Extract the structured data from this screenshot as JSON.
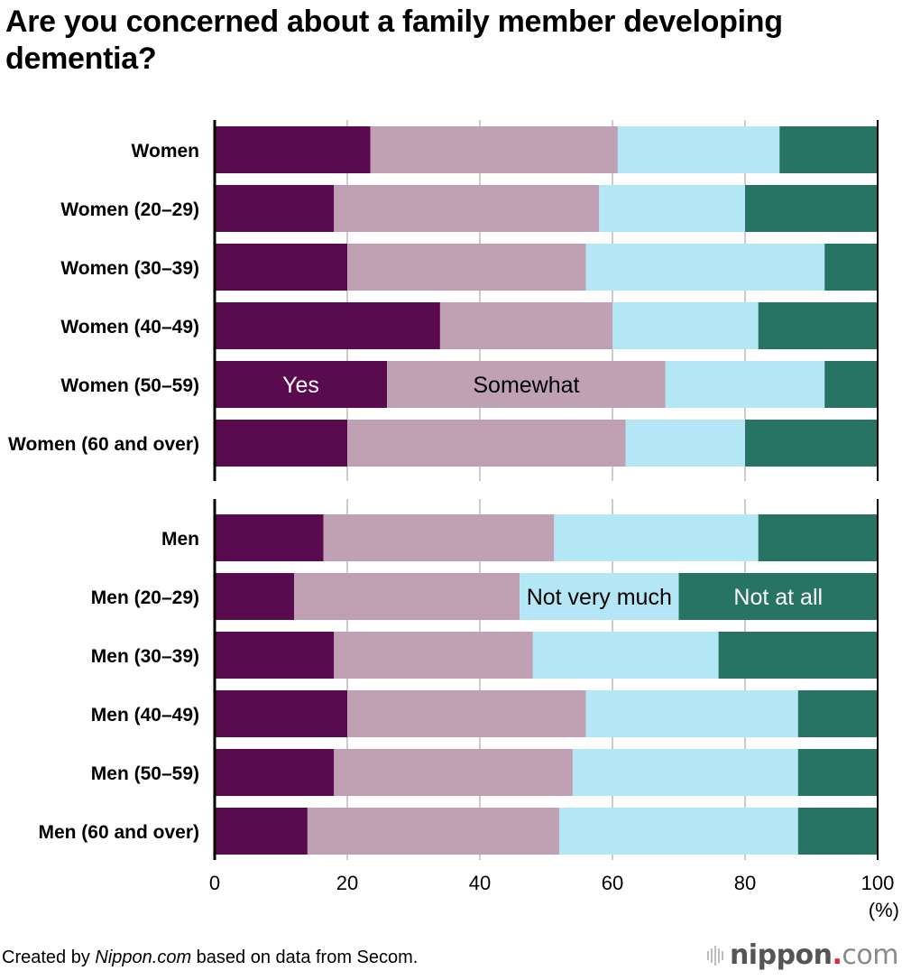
{
  "title": "Are you concerned about a family member developing dementia?",
  "footer": {
    "prefix": "Created by ",
    "source_name": "Nippon.com",
    "suffix": " based on data from Secom."
  },
  "logo": {
    "name": "nippon",
    "dot": ".",
    "tld": "com",
    "dot_color": "#e0262b"
  },
  "chart_data": {
    "type": "bar",
    "orientation": "horizontal",
    "stacked": true,
    "title": "Are you concerned about a family member developing dementia?",
    "xlabel": "",
    "xunit": "(%)",
    "xlim": [
      0,
      100
    ],
    "xticks": [
      "0",
      "20",
      "40",
      "60",
      "80",
      "100"
    ],
    "grid": true,
    "groups": [
      {
        "name": "Women",
        "categories": [
          "Women",
          "Women (20–29)",
          "Women (30–39)",
          "Women (40–49)",
          "Women (50–59)",
          "Women (60 and over)"
        ]
      },
      {
        "name": "Men",
        "categories": [
          "Men",
          "Men (20–29)",
          "Men (30–39)",
          "Men (40–49)",
          "Men (50–59)",
          "Men (60 and over)"
        ]
      }
    ],
    "categories": [
      "Women",
      "Women (20–29)",
      "Women (30–39)",
      "Women (40–49)",
      "Women (50–59)",
      "Women (60 and over)",
      "Men",
      "Men (20–29)",
      "Men (30–39)",
      "Men (40–49)",
      "Men (50–59)",
      "Men (60 and over)"
    ],
    "series": [
      {
        "name": "Yes",
        "color": "#5a0b50",
        "label_color": "#ffffff",
        "values": [
          23.5,
          18.0,
          20.0,
          34.0,
          26.0,
          20.0,
          16.4,
          12.0,
          18.0,
          20.0,
          18.0,
          14.0
        ]
      },
      {
        "name": "Somewhat",
        "color": "#c0a1b4",
        "label_color": "#000000",
        "values": [
          37.3,
          40.0,
          36.0,
          26.0,
          42.0,
          42.0,
          34.8,
          34.0,
          30.0,
          36.0,
          36.0,
          38.0
        ]
      },
      {
        "name": "Not very much",
        "color": "#b4e7f5",
        "label_color": "#000000",
        "values": [
          24.4,
          22.0,
          36.0,
          22.0,
          24.0,
          18.0,
          30.8,
          24.0,
          28.0,
          32.0,
          34.0,
          36.0
        ]
      },
      {
        "name": "Not at all",
        "color": "#287464",
        "label_color": "#ffffff",
        "values": [
          14.8,
          20.0,
          8.0,
          18.0,
          8.0,
          20.0,
          18.0,
          30.0,
          24.0,
          12.0,
          12.0,
          12.0
        ]
      }
    ],
    "inline_legend": [
      {
        "series": "Yes",
        "category": "Women (50–59)"
      },
      {
        "series": "Somewhat",
        "category": "Women (50–59)"
      },
      {
        "series": "Not very much",
        "category": "Men (20–29)"
      },
      {
        "series": "Not at all",
        "category": "Men (20–29)"
      }
    ]
  }
}
